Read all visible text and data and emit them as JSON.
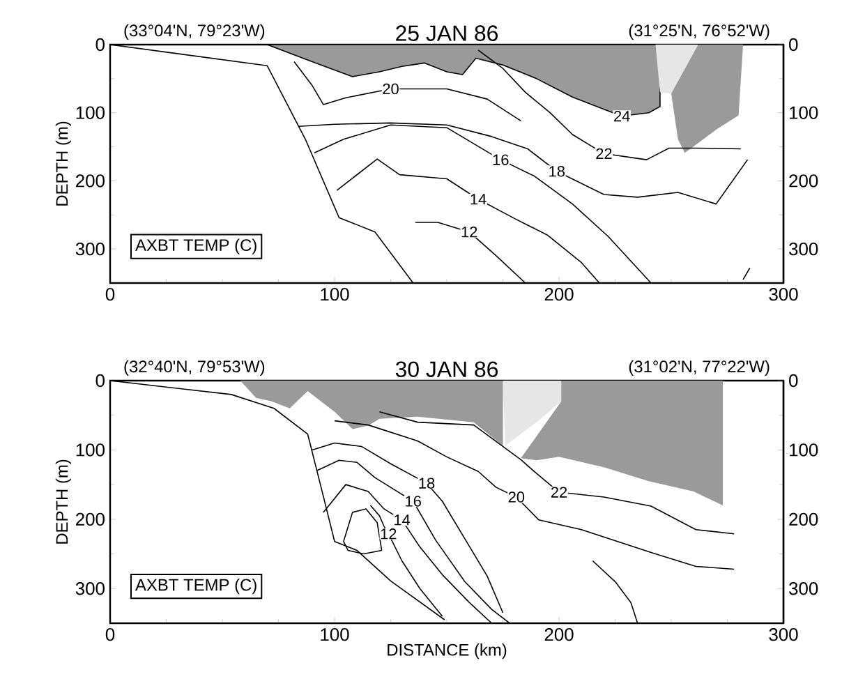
{
  "chart_data": [
    {
      "type": "line",
      "title": "25 JAN 86",
      "ylabel": "DEPTH (m)",
      "annotations": [
        "(33°04'N, 79°23'W)",
        "(31°25'N, 76°52'W)",
        "AXBT TEMP (C)"
      ],
      "xlim": [
        0,
        300
      ],
      "xticks": [
        0,
        100,
        200,
        300
      ],
      "ylim": [
        350,
        0
      ],
      "yticks": [
        0,
        100,
        200,
        300
      ],
      "y2lim": [
        350,
        0
      ],
      "y2ticks": [
        0,
        100,
        200,
        300
      ],
      "series": [
        {
          "type": "area",
          "color": "#9a9a9a",
          "name": "24",
          "x": [
            70,
            90,
            108,
            120,
            130,
            140,
            150,
            157,
            163,
            175,
            190,
            206,
            220,
            228,
            240,
            245
          ],
          "values": [
            0,
            25,
            47,
            40,
            32,
            27,
            40,
            44,
            20,
            30,
            50,
            77,
            95,
            105,
            100,
            91
          ]
        },
        {
          "type": "area",
          "color": "#e6e6e6",
          "x": [
            243,
            245,
            250,
            262
          ],
          "values": [
            0,
            70,
            72,
            0
          ]
        },
        {
          "type": "area",
          "color": "#9a9a9a",
          "x": [
            262,
            250,
            253,
            256,
            259,
            270,
            280,
            282
          ],
          "values": [
            0,
            72,
            139,
            159,
            152,
            125,
            104,
            0
          ]
        },
        {
          "color": "#000000",
          "x": [
            0,
            70,
            87,
            102,
            118,
            135
          ],
          "values": [
            0,
            31,
            139,
            254,
            275,
            350
          ]
        },
        {
          "color": "#000000",
          "name": "12",
          "x": [
            136,
            146,
            160,
            172,
            185
          ],
          "values": [
            261,
            261,
            275,
            310,
            350
          ]
        },
        {
          "color": "#000000",
          "name": "14",
          "x": [
            101,
            119,
            129,
            150,
            164,
            180,
            195,
            210,
            218
          ],
          "values": [
            214,
            168,
            191,
            197,
            227,
            255,
            280,
            320,
            350
          ]
        },
        {
          "color": "#000000",
          "name": "16",
          "x": [
            91,
            104,
            125,
            150,
            174,
            189,
            206,
            222,
            241
          ],
          "values": [
            159,
            139,
            118,
            122,
            169,
            193,
            234,
            282,
            350
          ]
        },
        {
          "color": "#000000",
          "name": "18",
          "x": [
            84,
            100,
            125,
            150,
            170,
            186,
            199,
            220,
            235,
            253,
            270,
            284
          ],
          "values": [
            120,
            117,
            115,
            118,
            135,
            153,
            186,
            220,
            224,
            217,
            234,
            169
          ]
        },
        {
          "color": "#000000",
          "name": "20",
          "x": [
            82,
            90,
            95,
            105,
            125,
            150,
            168,
            183
          ],
          "values": [
            25,
            60,
            88,
            78,
            65,
            65,
            80,
            112
          ]
        },
        {
          "color": "#000000",
          "name": "22",
          "x": [
            164,
            175,
            185,
            196,
            206,
            220,
            239,
            249,
            261,
            281
          ],
          "values": [
            8,
            35,
            70,
            100,
            132,
            160,
            169,
            152,
            152,
            153
          ]
        },
        {
          "color": "#000000",
          "x": [
            282,
            285
          ],
          "values": [
            345,
            328
          ]
        }
      ]
    },
    {
      "type": "line",
      "title": "30 JAN 86",
      "xlabel": "DISTANCE (km)",
      "ylabel": "DEPTH (m)",
      "annotations": [
        "(32°40'N, 79°53'W)",
        "(31°02'N, 77°22'W)",
        "AXBT TEMP (C)"
      ],
      "xlim": [
        0,
        300
      ],
      "xticks": [
        0,
        100,
        200,
        300
      ],
      "ylim": [
        350,
        0
      ],
      "yticks": [
        0,
        100,
        200,
        300
      ],
      "y2lim": [
        350,
        0
      ],
      "y2ticks": [
        0,
        100,
        200,
        300
      ],
      "series": [
        {
          "type": "area",
          "color": "#9a9a9a",
          "x": [
            58,
            65,
            72,
            80,
            88,
            100,
            108,
            115,
            120,
            137,
            162,
            175
          ],
          "values": [
            0,
            25,
            30,
            40,
            15,
            45,
            70,
            65,
            55,
            52,
            60,
            94
          ]
        },
        {
          "type": "area",
          "color": "#e6e6e6",
          "x": [
            175,
            176,
            190,
            201,
            201
          ],
          "values": [
            0,
            94,
            60,
            30,
            0
          ]
        },
        {
          "type": "area",
          "color": "#9a9a9a",
          "x": [
            201,
            201,
            183,
            190,
            200,
            220,
            240,
            260,
            273,
            273
          ],
          "values": [
            0,
            30,
            112,
            115,
            110,
            125,
            145,
            160,
            180,
            0
          ]
        },
        {
          "color": "#000000",
          "x": [
            0,
            54,
            73,
            88,
            94,
            100,
            110,
            125,
            149
          ],
          "values": [
            0,
            20,
            40,
            77,
            154,
            232,
            245,
            289,
            345
          ]
        },
        {
          "color": "#000000",
          "x": [
            104,
            108,
            114,
            119,
            121
          ],
          "values": [
            232,
            190,
            185,
            205,
            245
          ]
        },
        {
          "color": "#000000",
          "x": [
            104,
            106,
            113,
            121
          ],
          "values": [
            232,
            245,
            250,
            245
          ]
        },
        {
          "color": "#000000",
          "name": "12",
          "x": [
            116,
            120,
            122,
            124,
            130,
            138,
            148
          ],
          "values": [
            180,
            195,
            210,
            221,
            260,
            300,
            340
          ]
        },
        {
          "color": "#000000",
          "name": "14",
          "x": [
            95,
            105,
            115,
            122,
            130,
            138,
            148,
            160,
            170
          ],
          "values": [
            190,
            150,
            160,
            185,
            201,
            240,
            280,
            320,
            350
          ]
        },
        {
          "color": "#000000",
          "name": "16",
          "x": [
            92,
            102,
            110,
            118,
            128,
            135,
            145,
            158,
            170,
            178
          ],
          "values": [
            130,
            115,
            118,
            140,
            160,
            174,
            230,
            290,
            330,
            350
          ]
        },
        {
          "color": "#000000",
          "name": "18",
          "x": [
            90,
            100,
            112,
            125,
            141,
            148,
            158,
            168,
            175
          ],
          "values": [
            100,
            90,
            95,
            120,
            148,
            174,
            228,
            282,
            335
          ]
        },
        {
          "color": "#000000",
          "name": "20",
          "x": [
            100,
            115,
            137,
            150,
            164,
            172,
            181,
            191,
            210,
            241,
            261,
            278
          ],
          "values": [
            58,
            64,
            87,
            110,
            131,
            154,
            168,
            201,
            215,
            248,
            268,
            272
          ]
        },
        {
          "color": "#000000",
          "name": "22",
          "x": [
            120,
            137,
            162,
            183,
            190,
            200,
            220,
            241,
            261,
            278
          ],
          "values": [
            45,
            60,
            64,
            114,
            134,
            161,
            168,
            181,
            215,
            221
          ]
        },
        {
          "color": "#000000",
          "x": [
            215,
            225,
            232,
            235
          ],
          "values": [
            260,
            290,
            320,
            350
          ]
        }
      ]
    }
  ]
}
